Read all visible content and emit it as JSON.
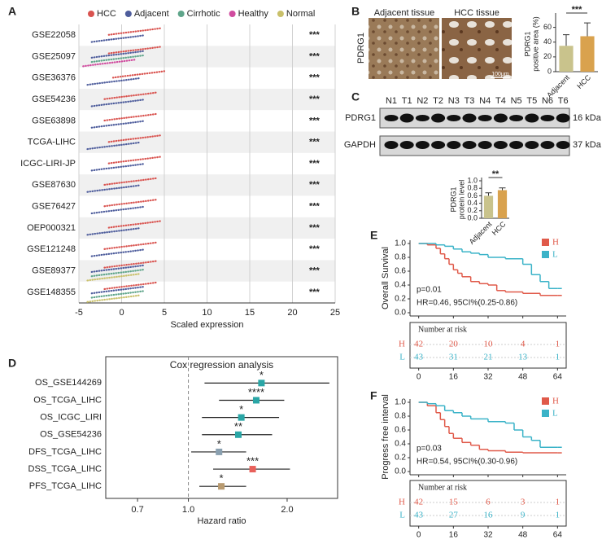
{
  "panel_labels": [
    "A",
    "B",
    "C",
    "D",
    "E",
    "F"
  ],
  "histology": {
    "left": "Adjacent tissue",
    "right": "HCC tissue",
    "ylabel": "PDRG1",
    "scale": "100μm"
  },
  "blot": {
    "lanes": [
      "N1",
      "T1",
      "N2",
      "T2",
      "N3",
      "T3",
      "N4",
      "T4",
      "N5",
      "T5",
      "N6",
      "T6"
    ],
    "rows": [
      {
        "name": "PDRG1",
        "size": "16 kDa"
      },
      {
        "name": "GAPDH",
        "size": "37 kDa"
      }
    ]
  },
  "chart_data": [
    {
      "type": "strip",
      "xlabel": "Scaled expression",
      "xlim": [
        -5,
        25
      ],
      "xticks": [
        -5,
        0,
        5,
        10,
        15,
        20,
        25
      ],
      "grid": true,
      "categories": [
        "GSE22058",
        "GSE25097",
        "GSE36376",
        "GSE54236",
        "GSE63898",
        "TCGA-LIHC",
        "ICGC-LIRI-JP",
        "GSE87630",
        "GSE76427",
        "OEP000321",
        "GSE121248",
        "GSE89377",
        "GSE148355"
      ],
      "series": [
        {
          "name": "HCC",
          "color": "#d9534f",
          "values": [
            1.5,
            1.5,
            2,
            1,
            1,
            1.5,
            1.5,
            1,
            1,
            1.5,
            1,
            1,
            1
          ]
        },
        {
          "name": "Adjacent",
          "color": "#4e5d9c",
          "values": [
            -0.5,
            -0.5,
            -1,
            -0.5,
            -0.5,
            -1,
            -0.5,
            -1,
            -0.5,
            -1,
            -0.5,
            -0.5,
            -0.5
          ]
        },
        {
          "name": "Cirrhotic",
          "color": "#5fa58a",
          "values": [
            null,
            -0.5,
            null,
            null,
            null,
            null,
            null,
            null,
            null,
            null,
            null,
            -0.5,
            -0.5
          ]
        },
        {
          "name": "Healthy",
          "color": "#d04c9f",
          "values": [
            null,
            -1.5,
            null,
            null,
            null,
            null,
            null,
            null,
            null,
            null,
            null,
            null,
            null
          ]
        },
        {
          "name": "Normal",
          "color": "#c9c06a",
          "values": [
            null,
            null,
            null,
            null,
            null,
            null,
            null,
            null,
            null,
            null,
            null,
            -1,
            -1
          ]
        }
      ],
      "significance": [
        "***",
        "***",
        "***",
        "***",
        "***",
        "***",
        "***",
        "***",
        "***",
        "***",
        "***",
        "***",
        "***"
      ]
    },
    {
      "type": "bar",
      "ylabel": [
        "PDRG1",
        "positive area (%)"
      ],
      "categories": [
        "Adjacent",
        "HCC"
      ],
      "values": [
        35,
        48
      ],
      "errors": [
        15,
        18
      ],
      "colors": [
        "#c9c38c",
        "#d9a24e"
      ],
      "ylim": [
        0,
        75
      ],
      "yticks": [
        0,
        20,
        40,
        60
      ],
      "significance": "***"
    },
    {
      "type": "bar",
      "ylabel": [
        "PDRG1",
        "protein level"
      ],
      "categories": [
        "Adjacent",
        "HCC"
      ],
      "values": [
        0.6,
        0.75
      ],
      "errors": [
        0.08,
        0.06
      ],
      "colors": [
        "#c9c38c",
        "#d9a24e"
      ],
      "ylim": [
        0,
        1
      ],
      "yticks": [
        {
          "value": 0,
          "label": "0.0"
        },
        0.2,
        0.4,
        0.6,
        0.8,
        {
          "value": 1,
          "label": "1.0"
        }
      ],
      "significance": "**"
    },
    {
      "type": "forest",
      "title": "Cox regression analysis",
      "xlabel": "Hazard ratio",
      "log_x": true,
      "xlim": [
        0.56,
        2.85
      ],
      "xticks": [
        0.7,
        {
          "value": 1,
          "label": "1.0"
        },
        {
          "value": 2,
          "label": "2.0"
        }
      ],
      "reference": 1,
      "categories": [
        "OS_GSE144269",
        "OS_TCGA_LIHC",
        "OS_ICGC_LIRI",
        "OS_GSE54236",
        "DFS_TCGA_LIHC",
        "DSS_TCGA_LIHC",
        "PFS_TCGA_LIHC"
      ],
      "values": [
        1.67,
        1.61,
        1.45,
        1.42,
        1.24,
        1.57,
        1.26
      ],
      "lower": [
        1.12,
        1.24,
        1.1,
        1.1,
        1.02,
        1.19,
        1.08
      ],
      "upper": [
        2.69,
        1.96,
        1.89,
        1.8,
        1.5,
        2.04,
        1.5
      ],
      "colors": [
        "#2aa6a6",
        "#2aa6a6",
        "#2aa6a6",
        "#2aa6a6",
        "#8aa0b0",
        "#e8605a",
        "#b89a70"
      ],
      "significance": [
        "*",
        "****",
        "*",
        "**",
        "*",
        "***",
        "*"
      ]
    },
    {
      "type": "km",
      "ylabel": "Overall Survival",
      "xlim": [
        -4,
        68
      ],
      "xticks": [
        0,
        16,
        32,
        48,
        64
      ],
      "ylim": [
        0,
        1
      ],
      "yticks": [
        {
          "value": 0,
          "label": "0.0"
        },
        0.2,
        0.4,
        0.6,
        0.8,
        {
          "value": 1,
          "label": "1.0"
        }
      ],
      "series": [
        {
          "name": "H",
          "color": "#e05a4a",
          "x": [
            0,
            4,
            8,
            10,
            12,
            14,
            16,
            18,
            20,
            24,
            28,
            32,
            36,
            40,
            48,
            56,
            64
          ],
          "values": [
            1,
            0.98,
            0.93,
            0.85,
            0.78,
            0.7,
            0.62,
            0.57,
            0.52,
            0.45,
            0.42,
            0.4,
            0.32,
            0.3,
            0.28,
            0.25,
            0.25
          ]
        },
        {
          "name": "L",
          "color": "#3bb3c8",
          "x": [
            0,
            4,
            8,
            12,
            16,
            20,
            24,
            28,
            32,
            40,
            48,
            52,
            56,
            60,
            64
          ],
          "values": [
            1,
            1,
            0.98,
            0.96,
            0.92,
            0.88,
            0.86,
            0.84,
            0.8,
            0.78,
            0.7,
            0.55,
            0.45,
            0.35,
            0.35
          ]
        }
      ],
      "annotations": [
        "p=0.01",
        "HR=0.46, 95CI%(0.25-0.86)"
      ],
      "risk_table": {
        "title": "Number at risk",
        "rows": [
          {
            "values": [
              42,
              20,
              10,
              4,
              1
            ]
          },
          {
            "values": [
              43,
              31,
              21,
              13,
              1
            ]
          }
        ]
      }
    },
    {
      "type": "km",
      "ylabel": "Progress free interval",
      "xlim": [
        -4,
        68
      ],
      "xticks": [
        0,
        16,
        32,
        48,
        64
      ],
      "ylim": [
        0,
        1
      ],
      "yticks": [
        {
          "value": 0,
          "label": "0.0"
        },
        0.2,
        0.4,
        0.6,
        0.8,
        {
          "value": 1,
          "label": "1.0"
        }
      ],
      "series": [
        {
          "name": "H",
          "color": "#e05a4a",
          "x": [
            0,
            4,
            8,
            10,
            12,
            14,
            16,
            20,
            24,
            28,
            32,
            40,
            48,
            56,
            64
          ],
          "values": [
            1,
            0.95,
            0.85,
            0.75,
            0.65,
            0.55,
            0.48,
            0.42,
            0.38,
            0.32,
            0.3,
            0.28,
            0.27,
            0.27,
            0.27
          ]
        },
        {
          "name": "L",
          "color": "#3bb3c8",
          "x": [
            0,
            4,
            8,
            12,
            16,
            20,
            24,
            32,
            40,
            44,
            48,
            52,
            56,
            64
          ],
          "values": [
            1,
            0.98,
            0.95,
            0.88,
            0.85,
            0.8,
            0.76,
            0.72,
            0.7,
            0.6,
            0.5,
            0.45,
            0.35,
            0.35
          ]
        }
      ],
      "annotations": [
        "p=0.03",
        "HR=0.54, 95CI%(0.30-0.96)"
      ],
      "risk_table": {
        "title": "Number at risk",
        "rows": [
          {
            "values": [
              42,
              15,
              6,
              3,
              1
            ]
          },
          {
            "values": [
              43,
              27,
              16,
              9,
              1
            ]
          }
        ]
      }
    }
  ]
}
